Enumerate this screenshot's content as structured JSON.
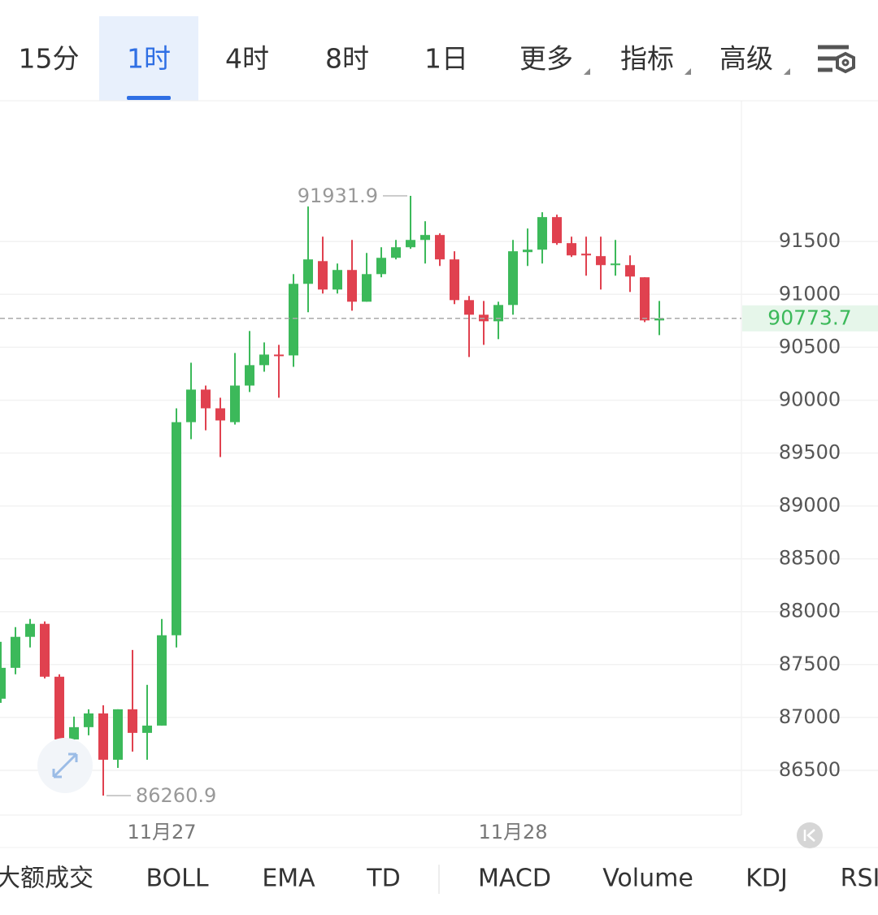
{
  "toolbar": {
    "tabs": [
      "15分",
      "1时",
      "4时",
      "8时",
      "1日",
      "更多",
      "指标",
      "高级"
    ]
  },
  "chart_data": {
    "type": "candlestick",
    "categories": [
      null,
      null,
      null,
      null,
      null,
      null,
      null,
      null,
      null,
      null,
      null,
      "11月27",
      null,
      null,
      null,
      null,
      null,
      null,
      null,
      null,
      null,
      null,
      null,
      null,
      null,
      null,
      null,
      null,
      null,
      null,
      null,
      null,
      null,
      null,
      null,
      "11月28",
      null,
      null,
      null,
      null,
      null,
      null,
      null,
      null,
      null,
      null
    ],
    "open": [
      87177,
      87469,
      87762,
      87885,
      87385,
      86792,
      86908,
      87038,
      86600,
      87077,
      86854,
      86923,
      87777,
      89792,
      90100,
      89923,
      89792,
      90138,
      90331,
      90431,
      90423,
      91100,
      91315,
      91046,
      91231,
      90931,
      91192,
      91346,
      91446,
      91515,
      91562,
      91331,
      90946,
      90808,
      90746,
      90900,
      91400,
      91423,
      91731,
      91485,
      91385,
      91362,
      91277,
      91277,
      91162,
      90754
    ],
    "high": [
      87715,
      87854,
      87931,
      87908,
      87408,
      87008,
      87077,
      87115,
      87077,
      87638,
      87308,
      87931,
      89923,
      90354,
      90138,
      90023,
      90446,
      90654,
      90546,
      90523,
      91192,
      91831,
      91546,
      91292,
      91515,
      91392,
      91446,
      91515,
      91931.9,
      91692,
      91577,
      91408,
      90985,
      90938,
      90931,
      91515,
      91623,
      91777,
      91754,
      91546,
      91546,
      91546,
      91515,
      91369,
      91162,
      90938
    ],
    "low": [
      87138,
      87408,
      87662,
      87369,
      86700,
      86677,
      86831,
      86260.9,
      86523,
      86677,
      86600,
      86923,
      87662,
      89631,
      89715,
      89462,
      89769,
      90077,
      90269,
      90023,
      90315,
      90831,
      91008,
      91008,
      90846,
      90931,
      91162,
      91331,
      91431,
      91292,
      91269,
      90908,
      90408,
      90523,
      90577,
      90808,
      91269,
      91292,
      91469,
      91354,
      91177,
      91046,
      91177,
      91023,
      90738,
      90615
    ],
    "close": [
      87469,
      87762,
      87885,
      87385,
      86792,
      86908,
      87038,
      86600,
      87077,
      86854,
      86923,
      87777,
      89792,
      90100,
      89923,
      89808,
      90138,
      90331,
      90431,
      90423,
      91100,
      91331,
      91046,
      91231,
      90931,
      91192,
      91346,
      91446,
      91515,
      91562,
      91331,
      90946,
      90808,
      90746,
      90900,
      91408,
      91423,
      91731,
      91485,
      91369,
      91369,
      91277,
      91292,
      91169,
      90754,
      90773.7
    ],
    "up_color": "#3cb95a",
    "down_color": "#e0414f",
    "ylim": [
      86077,
      92831
    ],
    "yticks": [
      86500,
      87000,
      87500,
      88000,
      88500,
      89000,
      89500,
      90000,
      90500,
      91000,
      91500
    ],
    "grid": true,
    "last_price": 90773.7,
    "high_marker": 91931.9,
    "low_marker": 86260.9
  },
  "indicator_tabs": [
    "大额成交",
    "BOLL",
    "EMA",
    "TD",
    "MACD",
    "Volume",
    "KDJ",
    "RSI"
  ]
}
